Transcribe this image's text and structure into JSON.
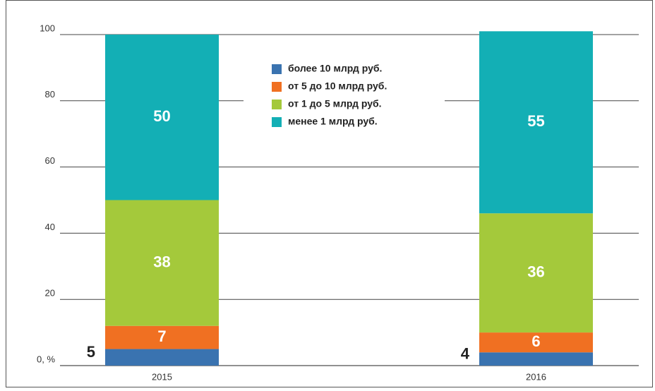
{
  "chart_data": {
    "type": "stacked_bar",
    "categories": [
      "2015",
      "2016"
    ],
    "series": [
      {
        "name": "более 10 млрд руб.",
        "color": "#3a73b0",
        "values": [
          5,
          4
        ]
      },
      {
        "name": "от 5 до 10 млрд руб.",
        "color": "#f07022",
        "values": [
          7,
          6
        ]
      },
      {
        "name": "от 1 до 5 млрд руб.",
        "color": "#a4c93b",
        "values": [
          38,
          36
        ]
      },
      {
        "name": "менее 1 млрд руб.",
        "color": "#13afb5",
        "values": [
          50,
          55
        ]
      }
    ],
    "ylim": [
      0,
      100
    ],
    "yticks": [
      {
        "value": 0,
        "label": "0, %"
      },
      20,
      40,
      60,
      80,
      100
    ],
    "grid": true
  }
}
